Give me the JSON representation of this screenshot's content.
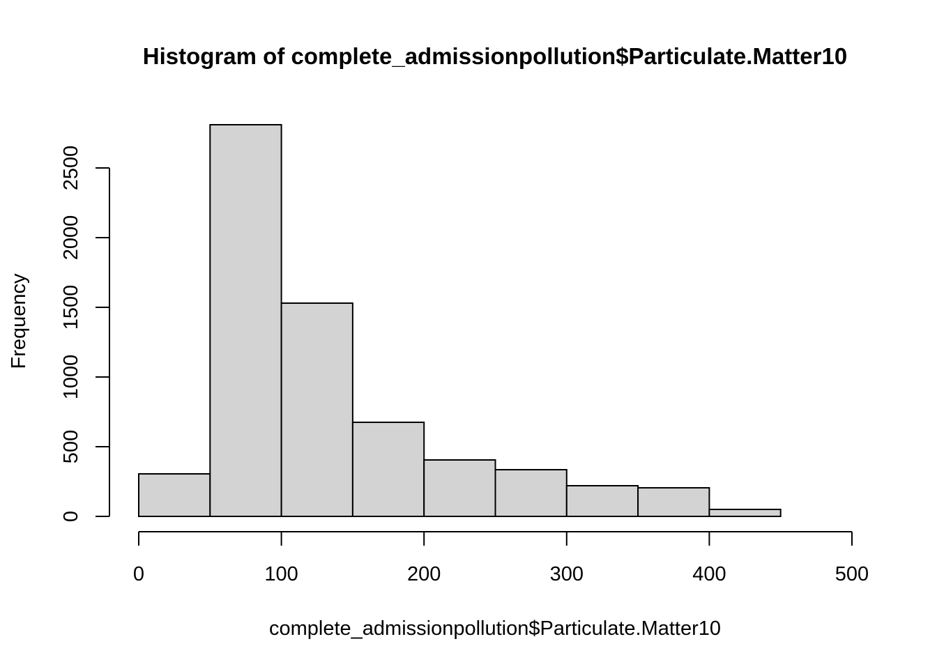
{
  "chart_data": {
    "type": "bar",
    "title": "Histogram of complete_admissionpollution$Particulate.Matter10",
    "xlabel": "complete_admissionpollution$Particulate.Matter10",
    "ylabel": "Frequency",
    "bins": [
      {
        "start": 0,
        "end": 50,
        "count": 305
      },
      {
        "start": 50,
        "end": 100,
        "count": 2810
      },
      {
        "start": 100,
        "end": 150,
        "count": 1530
      },
      {
        "start": 150,
        "end": 200,
        "count": 675
      },
      {
        "start": 200,
        "end": 250,
        "count": 405
      },
      {
        "start": 250,
        "end": 300,
        "count": 335
      },
      {
        "start": 300,
        "end": 350,
        "count": 220
      },
      {
        "start": 350,
        "end": 400,
        "count": 205
      },
      {
        "start": 400,
        "end": 450,
        "count": 50
      },
      {
        "start": 450,
        "end": 500,
        "count": 0
      }
    ],
    "xlim": [
      0,
      500
    ],
    "ylim": [
      0,
      2810
    ],
    "xticks": [
      0,
      100,
      200,
      300,
      400,
      500
    ],
    "xtick_labels": [
      "0",
      "100",
      "200",
      "300",
      "400",
      "500"
    ],
    "yticks": [
      0,
      500,
      1000,
      1500,
      2000,
      2500
    ],
    "ytick_labels": [
      "0",
      "500",
      "1000",
      "1500",
      "2000",
      "2500"
    ],
    "bar_fill": "#d3d3d3",
    "bar_stroke": "#000000",
    "grid": false,
    "legend": "none"
  }
}
